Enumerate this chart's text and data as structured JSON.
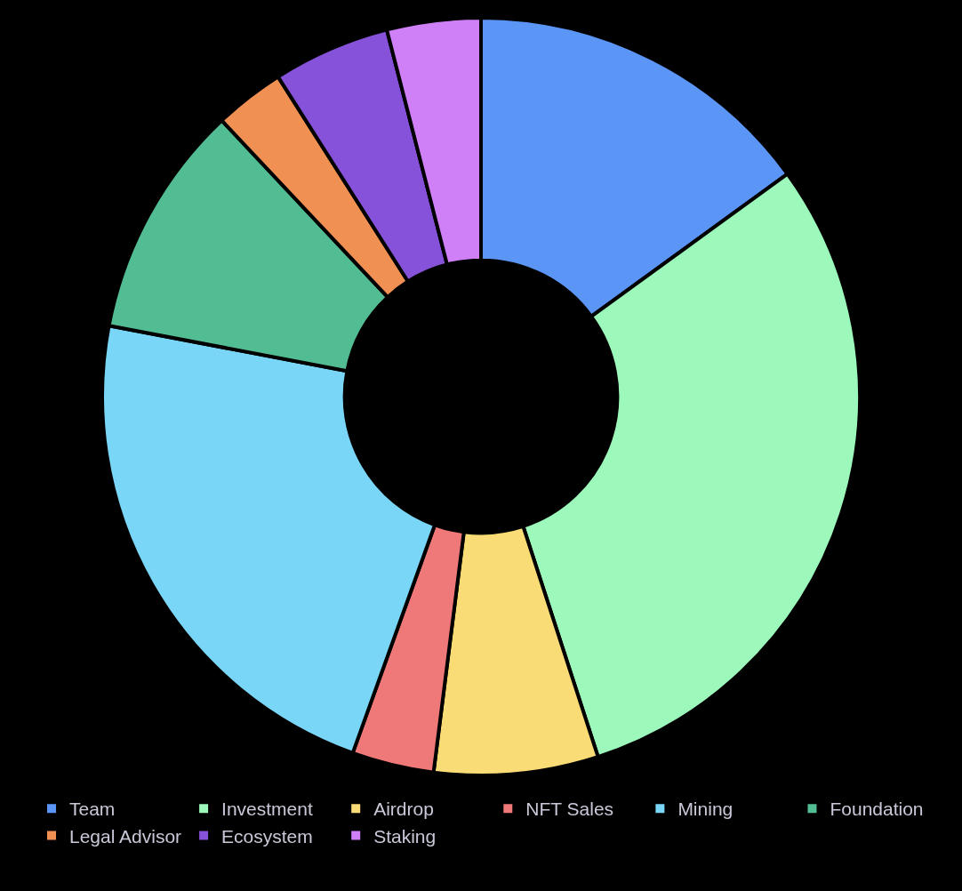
{
  "chart_data": {
    "type": "donut",
    "categories": [
      "Team",
      "Investment",
      "Airdrop",
      "NFT Sales",
      "Mining",
      "Foundation",
      "Legal Advisor",
      "Ecosystem",
      "Staking"
    ],
    "values": [
      15,
      30,
      7,
      3.5,
      22.5,
      10,
      3,
      5,
      4
    ],
    "colors": [
      "#5b96f7",
      "#9cf9bb",
      "#f9dc76",
      "#ef7878",
      "#7ad6f7",
      "#52bc92",
      "#f09153",
      "#8552d9",
      "#cf80f7"
    ],
    "legend": "bottom"
  }
}
